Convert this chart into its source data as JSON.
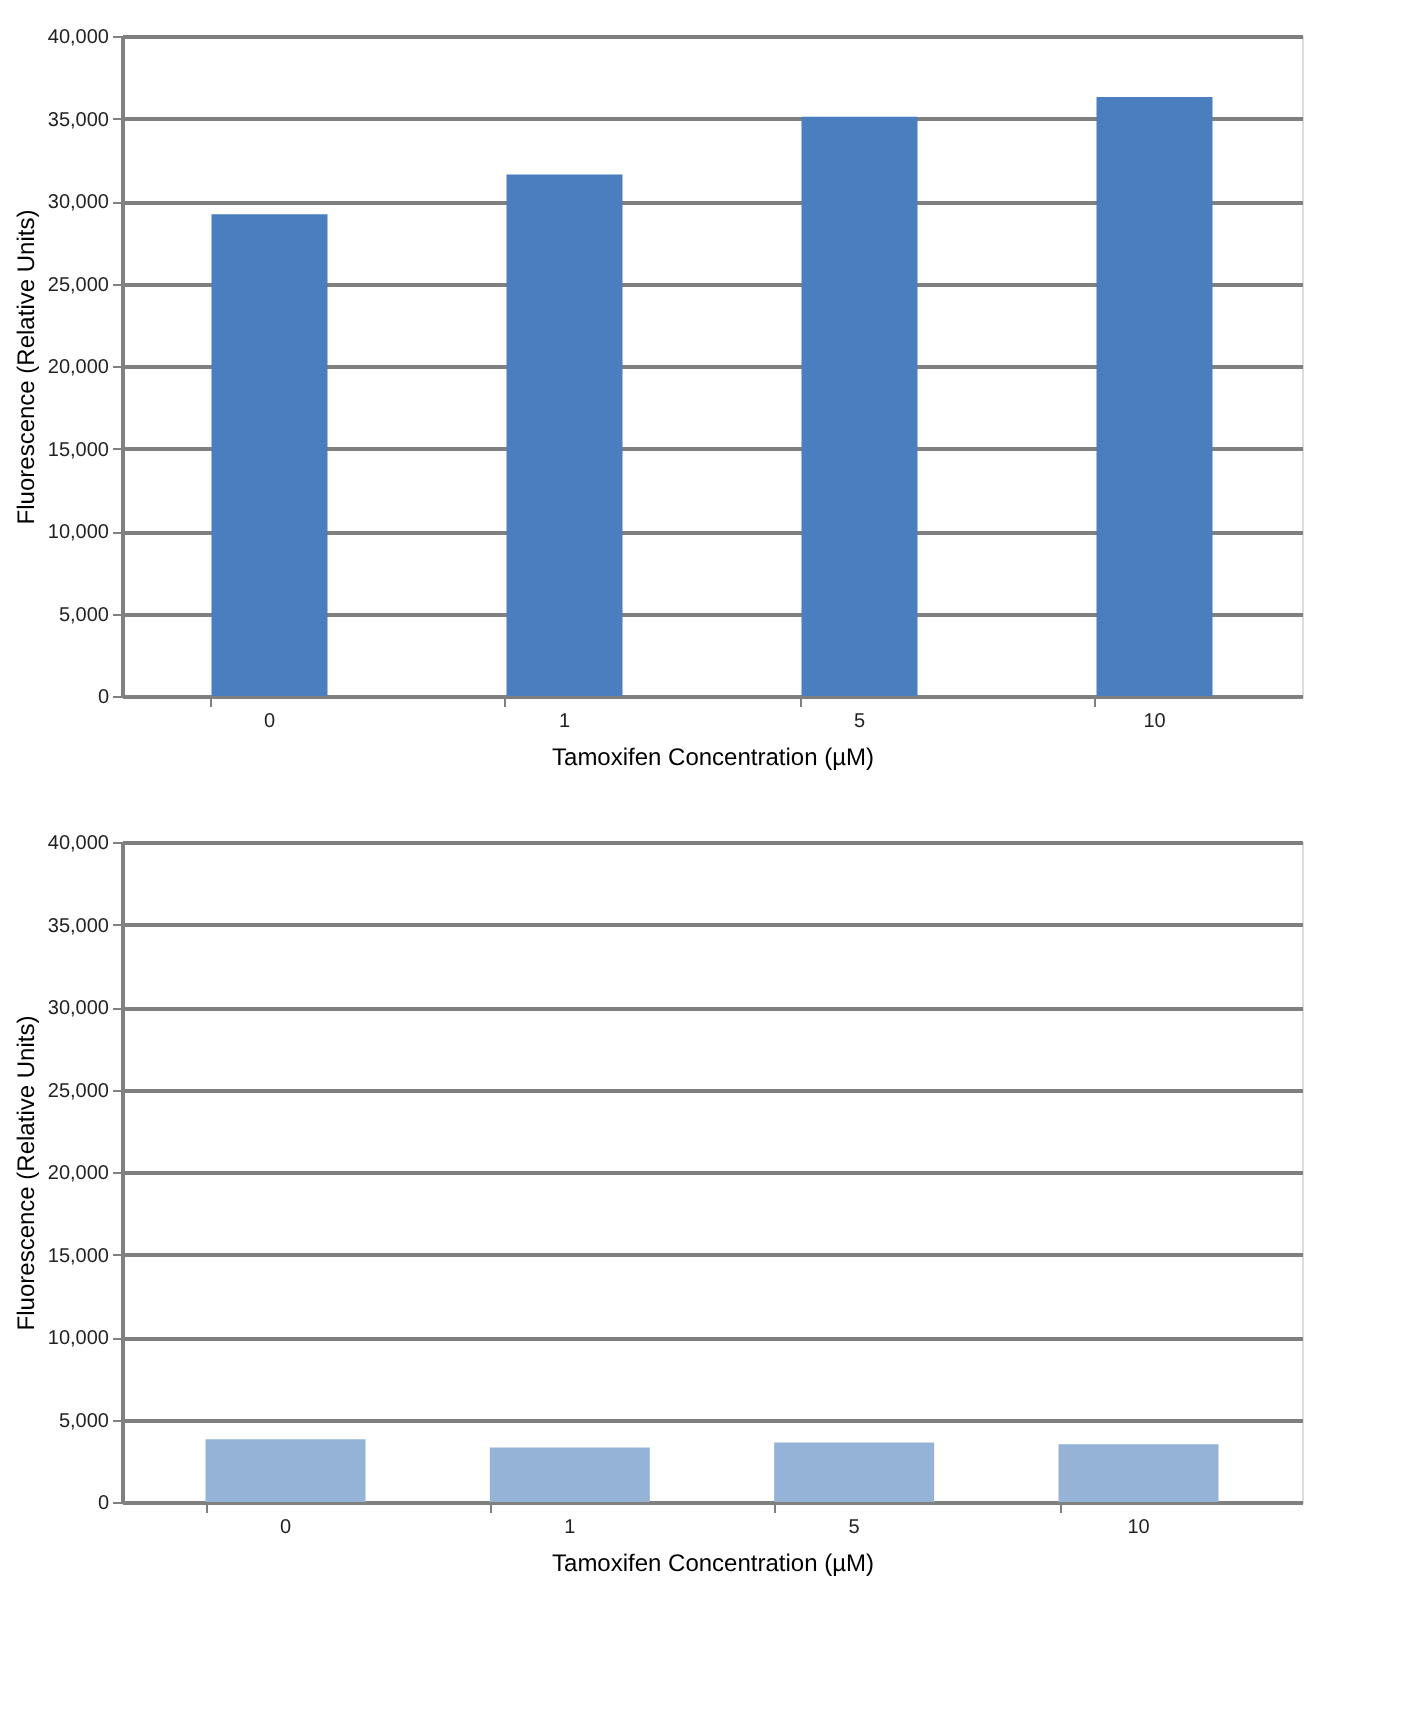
{
  "chart_data": [
    {
      "type": "bar",
      "categories": [
        "0",
        "1",
        "5",
        "10"
      ],
      "values": [
        29200,
        31600,
        35100,
        36300
      ],
      "color": "#4a7ebf",
      "xlabel": "Tamoxifen Concentration (µM)",
      "ylabel": "Fluorescence (Relative Units)",
      "ylim": [
        0,
        40000
      ],
      "yticks": [
        0,
        {
          "value": 5000,
          "label": "5,000"
        },
        {
          "value": 10000,
          "label": "10,000"
        },
        {
          "value": 15000,
          "label": "15,000"
        },
        {
          "value": 20000,
          "label": "20,000"
        },
        {
          "value": 25000,
          "label": "25,000"
        },
        {
          "value": 30000,
          "label": "30,000"
        },
        {
          "value": 35000,
          "label": "35,000"
        },
        {
          "value": 40000,
          "label": "40,000"
        }
      ],
      "grid": "y"
    },
    {
      "type": "bar",
      "categories": [
        "0",
        "1",
        "5",
        "10"
      ],
      "values": [
        3800,
        3300,
        3600,
        3500
      ],
      "color": "#95b3d7",
      "xlabel": "Tamoxifen Concentration (µM)",
      "ylabel": "Fluorescence (Relative Units)",
      "ylim": [
        0,
        40000
      ],
      "yticks": [
        0,
        {
          "value": 5000,
          "label": "5,000"
        },
        {
          "value": 10000,
          "label": "10,000"
        },
        {
          "value": 15000,
          "label": "15,000"
        },
        {
          "value": 20000,
          "label": "20,000"
        },
        {
          "value": 25000,
          "label": "25,000"
        },
        {
          "value": 30000,
          "label": "30,000"
        },
        {
          "value": 35000,
          "label": "35,000"
        },
        {
          "value": 40000,
          "label": "40,000"
        }
      ],
      "grid": "y"
    }
  ]
}
